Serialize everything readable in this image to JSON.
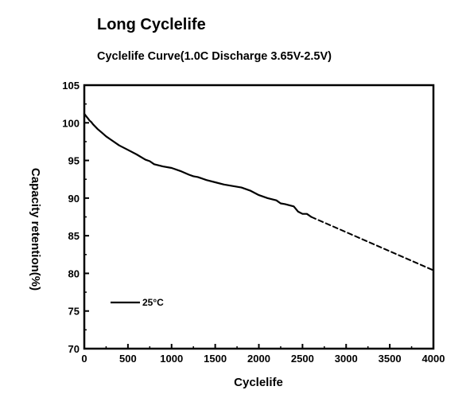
{
  "page": {
    "heading": "Long Cyclelife"
  },
  "chart_data": {
    "type": "line",
    "title": "Cyclelife Curve(1.0C Discharge 3.65V-2.5V)",
    "xlabel": "Cyclelife",
    "ylabel": "Capacity retention(%)",
    "xlim": [
      0,
      4000
    ],
    "ylim": [
      70,
      105
    ],
    "xticks": [
      0,
      500,
      1000,
      1500,
      2000,
      2500,
      3000,
      3500,
      4000
    ],
    "yticks": [
      70,
      75,
      80,
      85,
      90,
      95,
      100,
      105
    ],
    "grid": false,
    "legend": {
      "placement": "bottom-left",
      "entries": [
        "25°C"
      ]
    },
    "series": [
      {
        "name": "25°C",
        "style": "solid",
        "color": "#000000",
        "x": [
          0,
          20,
          40,
          60,
          80,
          100,
          150,
          200,
          250,
          300,
          400,
          500,
          600,
          700,
          750,
          800,
          900,
          1000,
          1100,
          1200,
          1250,
          1300,
          1400,
          1500,
          1600,
          1700,
          1800,
          1900,
          2000,
          2100,
          2200,
          2250,
          2300,
          2400,
          2450,
          2500,
          2550,
          2600
        ],
        "y": [
          101.2,
          100.9,
          100.6,
          100.3,
          100.1,
          99.8,
          99.2,
          98.7,
          98.2,
          97.8,
          97.0,
          96.4,
          95.8,
          95.1,
          94.9,
          94.5,
          94.2,
          94.0,
          93.6,
          93.1,
          92.9,
          92.8,
          92.4,
          92.1,
          91.8,
          91.6,
          91.4,
          91.0,
          90.4,
          90.0,
          89.7,
          89.3,
          89.2,
          88.9,
          88.2,
          87.9,
          87.9,
          87.5
        ]
      },
      {
        "name": "",
        "style": "dashed",
        "color": "#000000",
        "x": [
          2600,
          4000
        ],
        "y": [
          87.5,
          80.4
        ]
      }
    ]
  }
}
